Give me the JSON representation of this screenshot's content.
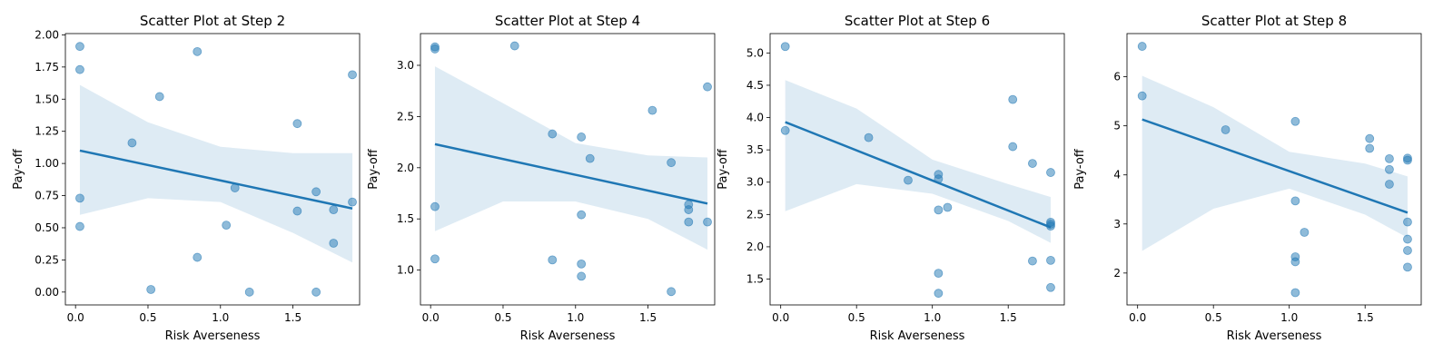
{
  "colors": {
    "point": "#1f77b4",
    "line": "#1f77b4",
    "band": "#1f77b4",
    "axis": "#000000"
  },
  "chart_data": [
    {
      "type": "scatter",
      "title": "Scatter Plot at Step 2",
      "xlabel": "Risk Averseness",
      "ylabel": "Pay-off",
      "xlim": [
        -0.07,
        1.96
      ],
      "ylim": [
        -0.1,
        2.01
      ],
      "xticks": [
        "0.0",
        "0.5",
        "1.0",
        "1.5"
      ],
      "yticks": [
        "0.00",
        "0.25",
        "0.50",
        "0.75",
        "1.00",
        "1.25",
        "1.50",
        "1.75",
        "2.00"
      ],
      "points": [
        {
          "x": 0.03,
          "y": 1.91
        },
        {
          "x": 0.03,
          "y": 1.73
        },
        {
          "x": 0.03,
          "y": 0.73
        },
        {
          "x": 0.03,
          "y": 0.51
        },
        {
          "x": 0.39,
          "y": 1.16
        },
        {
          "x": 0.52,
          "y": 0.02
        },
        {
          "x": 0.58,
          "y": 1.52
        },
        {
          "x": 0.84,
          "y": 1.87
        },
        {
          "x": 0.84,
          "y": 0.27
        },
        {
          "x": 1.04,
          "y": 0.52
        },
        {
          "x": 1.1,
          "y": 0.81
        },
        {
          "x": 1.2,
          "y": 0.0
        },
        {
          "x": 1.53,
          "y": 1.31
        },
        {
          "x": 1.53,
          "y": 0.63
        },
        {
          "x": 1.66,
          "y": 0.78
        },
        {
          "x": 1.66,
          "y": 0.0
        },
        {
          "x": 1.78,
          "y": 0.64
        },
        {
          "x": 1.78,
          "y": 0.38
        },
        {
          "x": 1.91,
          "y": 1.69
        },
        {
          "x": 1.91,
          "y": 0.7
        }
      ],
      "regression": {
        "x": [
          0.03,
          1.91
        ],
        "y": [
          1.1,
          0.65
        ]
      },
      "ci_band": [
        {
          "x": 0.03,
          "lo": 0.6,
          "hi": 1.61
        },
        {
          "x": 0.5,
          "lo": 0.73,
          "hi": 1.32
        },
        {
          "x": 1.0,
          "lo": 0.7,
          "hi": 1.13
        },
        {
          "x": 1.5,
          "lo": 0.46,
          "hi": 1.08
        },
        {
          "x": 1.91,
          "lo": 0.23,
          "hi": 1.08
        }
      ]
    },
    {
      "type": "scatter",
      "title": "Scatter Plot at Step 4",
      "xlabel": "Risk Averseness",
      "ylabel": "Pay-off",
      "xlim": [
        -0.07,
        1.96
      ],
      "ylim": [
        0.66,
        3.31
      ],
      "xticks": [
        "0.0",
        "0.5",
        "1.0",
        "1.5"
      ],
      "yticks": [
        "1.0",
        "1.5",
        "2.0",
        "2.5",
        "3.0"
      ],
      "points": [
        {
          "x": 0.03,
          "y": 3.18
        },
        {
          "x": 0.03,
          "y": 3.16
        },
        {
          "x": 0.03,
          "y": 1.62
        },
        {
          "x": 0.03,
          "y": 1.11
        },
        {
          "x": 0.58,
          "y": 3.19
        },
        {
          "x": 0.84,
          "y": 2.33
        },
        {
          "x": 0.84,
          "y": 1.1
        },
        {
          "x": 1.04,
          "y": 2.3
        },
        {
          "x": 1.04,
          "y": 1.54
        },
        {
          "x": 1.04,
          "y": 1.06
        },
        {
          "x": 1.04,
          "y": 0.94
        },
        {
          "x": 1.1,
          "y": 2.09
        },
        {
          "x": 1.53,
          "y": 2.56
        },
        {
          "x": 1.66,
          "y": 2.05
        },
        {
          "x": 1.66,
          "y": 0.79
        },
        {
          "x": 1.78,
          "y": 1.64
        },
        {
          "x": 1.78,
          "y": 1.59
        },
        {
          "x": 1.78,
          "y": 1.47
        },
        {
          "x": 1.91,
          "y": 2.79
        },
        {
          "x": 1.91,
          "y": 1.47
        }
      ],
      "regression": {
        "x": [
          0.03,
          1.91
        ],
        "y": [
          2.23,
          1.65
        ]
      },
      "ci_band": [
        {
          "x": 0.03,
          "lo": 1.38,
          "hi": 2.99
        },
        {
          "x": 0.5,
          "lo": 1.67,
          "hi": 2.63
        },
        {
          "x": 1.0,
          "lo": 1.67,
          "hi": 2.24
        },
        {
          "x": 1.5,
          "lo": 1.5,
          "hi": 2.12
        },
        {
          "x": 1.91,
          "lo": 1.2,
          "hi": 2.1
        }
      ]
    },
    {
      "type": "scatter",
      "title": "Scatter Plot at Step 6",
      "xlabel": "Risk Averseness",
      "ylabel": "Pay-off",
      "xlim": [
        -0.07,
        1.87
      ],
      "ylim": [
        1.1,
        5.3
      ],
      "xticks": [
        "0.0",
        "0.5",
        "1.0",
        "1.5"
      ],
      "yticks": [
        "1.5",
        "2.0",
        "2.5",
        "3.0",
        "3.5",
        "4.0",
        "4.5",
        "5.0"
      ],
      "points": [
        {
          "x": 0.03,
          "y": 5.1
        },
        {
          "x": 0.03,
          "y": 3.8
        },
        {
          "x": 0.58,
          "y": 3.69
        },
        {
          "x": 0.84,
          "y": 3.03
        },
        {
          "x": 1.04,
          "y": 3.12
        },
        {
          "x": 1.04,
          "y": 3.05
        },
        {
          "x": 1.04,
          "y": 2.57
        },
        {
          "x": 1.04,
          "y": 1.59
        },
        {
          "x": 1.04,
          "y": 1.28
        },
        {
          "x": 1.1,
          "y": 2.61
        },
        {
          "x": 1.53,
          "y": 4.28
        },
        {
          "x": 1.53,
          "y": 3.55
        },
        {
          "x": 1.66,
          "y": 3.29
        },
        {
          "x": 1.66,
          "y": 1.78
        },
        {
          "x": 1.78,
          "y": 3.15
        },
        {
          "x": 1.78,
          "y": 2.38
        },
        {
          "x": 1.78,
          "y": 2.35
        },
        {
          "x": 1.78,
          "y": 2.32
        },
        {
          "x": 1.78,
          "y": 1.79
        },
        {
          "x": 1.78,
          "y": 1.37
        }
      ],
      "regression": {
        "x": [
          0.03,
          1.78
        ],
        "y": [
          3.93,
          2.3
        ]
      },
      "ci_band": [
        {
          "x": 0.03,
          "lo": 2.55,
          "hi": 4.58
        },
        {
          "x": 0.5,
          "lo": 2.97,
          "hi": 4.14
        },
        {
          "x": 1.0,
          "lo": 2.82,
          "hi": 3.35
        },
        {
          "x": 1.5,
          "lo": 2.4,
          "hi": 2.97
        },
        {
          "x": 1.78,
          "lo": 2.06,
          "hi": 2.77
        }
      ]
    },
    {
      "type": "scatter",
      "title": "Scatter Plot at Step 8",
      "xlabel": "Risk Averseness",
      "ylabel": "Pay-off",
      "xlim": [
        -0.07,
        1.87
      ],
      "ylim": [
        1.35,
        6.88
      ],
      "xticks": [
        "0.0",
        "0.5",
        "1.0",
        "1.5"
      ],
      "yticks": [
        "2",
        "3",
        "4",
        "5",
        "6"
      ],
      "points": [
        {
          "x": 0.03,
          "y": 6.62
        },
        {
          "x": 0.03,
          "y": 5.61
        },
        {
          "x": 0.58,
          "y": 4.92
        },
        {
          "x": 1.04,
          "y": 5.09
        },
        {
          "x": 1.04,
          "y": 3.47
        },
        {
          "x": 1.04,
          "y": 2.33
        },
        {
          "x": 1.04,
          "y": 2.23
        },
        {
          "x": 1.04,
          "y": 1.6
        },
        {
          "x": 1.1,
          "y": 2.83
        },
        {
          "x": 1.53,
          "y": 4.74
        },
        {
          "x": 1.53,
          "y": 4.54
        },
        {
          "x": 1.66,
          "y": 4.33
        },
        {
          "x": 1.66,
          "y": 4.11
        },
        {
          "x": 1.66,
          "y": 3.81
        },
        {
          "x": 1.78,
          "y": 4.34
        },
        {
          "x": 1.78,
          "y": 4.3
        },
        {
          "x": 1.78,
          "y": 3.04
        },
        {
          "x": 1.78,
          "y": 2.69
        },
        {
          "x": 1.78,
          "y": 2.46
        },
        {
          "x": 1.78,
          "y": 2.12
        }
      ],
      "regression": {
        "x": [
          0.03,
          1.78
        ],
        "y": [
          5.13,
          3.23
        ]
      },
      "ci_band": [
        {
          "x": 0.03,
          "lo": 2.45,
          "hi": 6.02
        },
        {
          "x": 0.5,
          "lo": 3.31,
          "hi": 5.38
        },
        {
          "x": 1.0,
          "lo": 3.72,
          "hi": 4.47
        },
        {
          "x": 1.5,
          "lo": 3.19,
          "hi": 4.23
        },
        {
          "x": 1.78,
          "lo": 2.72,
          "hi": 3.97
        }
      ]
    }
  ]
}
